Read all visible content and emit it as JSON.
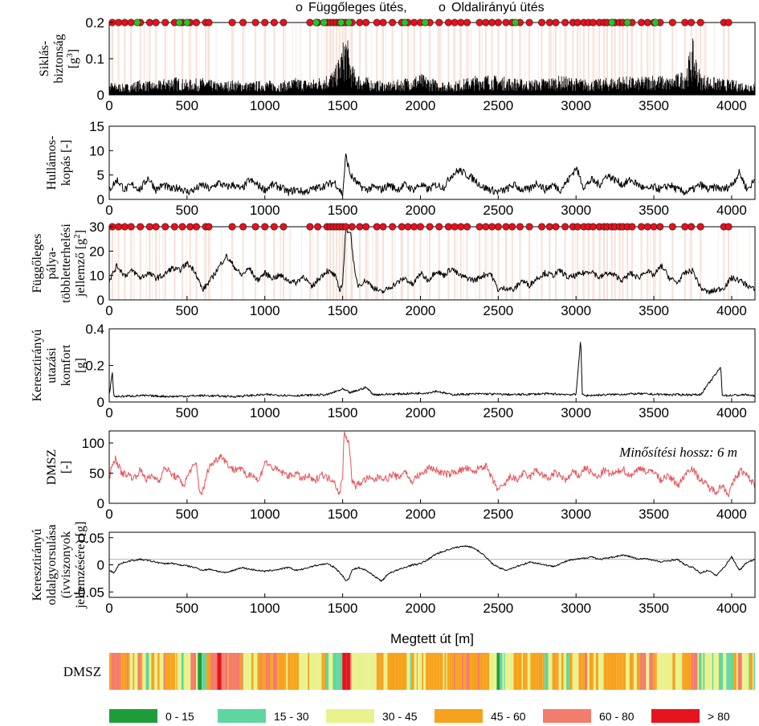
{
  "chart_data": {
    "type": "line",
    "legend": {
      "marker_vertical_symbol": "o",
      "marker_vertical_label": "Függőleges ütés,",
      "marker_lateral_symbol": "o",
      "marker_lateral_label": "Oldalirányú ütés",
      "marker_vertical_color": "#e8101c",
      "marker_lateral_color": "#2bc424"
    },
    "xlabel": "Megtett út [m]",
    "xlim": [
      0,
      4150
    ],
    "xticks": [
      0,
      500,
      1000,
      1500,
      2000,
      2500,
      3000,
      3500,
      4000
    ],
    "vertical_impacts": [
      20,
      60,
      100,
      140,
      200,
      260,
      300,
      360,
      420,
      470,
      520,
      560,
      620,
      640,
      790,
      860,
      940,
      1000,
      1060,
      1120,
      1290,
      1340,
      1400,
      1420,
      1440,
      1460,
      1480,
      1500,
      1520,
      1560,
      1610,
      1650,
      1720,
      1760,
      1820,
      1880,
      1920,
      1960,
      2000,
      2060,
      2120,
      2180,
      2220,
      2260,
      2300,
      2380,
      2420,
      2460,
      2500,
      2550,
      2590,
      2640,
      2700,
      2780,
      2830,
      2870,
      2930,
      2980,
      3010,
      3050,
      3080,
      3110,
      3150,
      3180,
      3200,
      3230,
      3250,
      3280,
      3300,
      3330,
      3360,
      3420,
      3460,
      3500,
      3540,
      3620,
      3700,
      3740,
      3800,
      3950,
      3980
    ],
    "lateral_impacts": [
      180,
      450,
      500,
      1330,
      1380,
      1490,
      1540,
      1900,
      2030,
      2610,
      3230,
      3330,
      3510
    ],
    "panels": [
      {
        "id": "slip",
        "ylabel_lines": [
          "Siklás-",
          "biztonság"
        ],
        "ylabel_unit": "[g",
        "ylabel_unit_sup": "3",
        "ylabel_unit_end": "]",
        "ylim": [
          0,
          0.2
        ],
        "yticks": [
          "0",
          "0.1",
          "0.2"
        ],
        "ytick_values": [
          0,
          0.1,
          0.2
        ],
        "color": "#000000",
        "style": "spikes",
        "markers": "both",
        "x": [
          0,
          100,
          200,
          300,
          400,
          500,
          600,
          700,
          800,
          900,
          1000,
          1100,
          1200,
          1300,
          1400,
          1450,
          1500,
          1520,
          1560,
          1600,
          1700,
          1800,
          1900,
          2000,
          2100,
          2200,
          2300,
          2400,
          2500,
          2600,
          2700,
          2800,
          2900,
          3000,
          3100,
          3200,
          3300,
          3400,
          3500,
          3600,
          3700,
          3750,
          3800,
          3900,
          4000,
          4100,
          4150
        ],
        "y": [
          0.03,
          0.025,
          0.035,
          0.03,
          0.045,
          0.035,
          0.04,
          0.03,
          0.035,
          0.03,
          0.035,
          0.03,
          0.04,
          0.035,
          0.05,
          0.06,
          0.12,
          0.155,
          0.07,
          0.05,
          0.035,
          0.03,
          0.04,
          0.05,
          0.035,
          0.03,
          0.04,
          0.05,
          0.045,
          0.04,
          0.035,
          0.04,
          0.045,
          0.04,
          0.035,
          0.04,
          0.045,
          0.04,
          0.05,
          0.04,
          0.06,
          0.13,
          0.05,
          0.04,
          0.035,
          0.03,
          0.03
        ]
      },
      {
        "id": "corrugation",
        "ylabel_lines": [
          "Hullámos-",
          "kopás [-]"
        ],
        "ylim": [
          0,
          15
        ],
        "yticks": [
          "0",
          "5",
          "10",
          "15"
        ],
        "ytick_values": [
          0,
          5,
          10,
          15
        ],
        "color": "#000000",
        "style": "line",
        "markers": "none",
        "x": [
          0,
          50,
          100,
          150,
          200,
          250,
          300,
          350,
          400,
          450,
          500,
          550,
          600,
          650,
          700,
          750,
          800,
          850,
          900,
          950,
          1000,
          1050,
          1100,
          1150,
          1200,
          1250,
          1300,
          1350,
          1400,
          1450,
          1500,
          1520,
          1550,
          1600,
          1650,
          1700,
          1750,
          1800,
          1850,
          1900,
          1950,
          2000,
          2050,
          2100,
          2150,
          2200,
          2250,
          2300,
          2350,
          2400,
          2450,
          2500,
          2550,
          2600,
          2650,
          2700,
          2750,
          2800,
          2850,
          2900,
          2950,
          3000,
          3050,
          3100,
          3150,
          3200,
          3250,
          3300,
          3350,
          3400,
          3450,
          3500,
          3550,
          3600,
          3650,
          3700,
          3750,
          3800,
          3850,
          3900,
          3950,
          4000,
          4050,
          4100,
          4150
        ],
        "y": [
          2,
          4,
          2,
          3,
          2,
          4.5,
          2,
          3,
          2,
          2.5,
          1.5,
          2,
          3,
          2,
          3.5,
          2.5,
          3,
          2,
          4,
          3,
          2,
          3,
          2.5,
          1.5,
          2,
          1.5,
          2,
          2.5,
          3,
          3.5,
          1,
          9,
          5,
          3,
          2,
          2.5,
          2,
          3,
          2,
          3,
          2,
          3,
          2,
          3,
          2.5,
          5,
          6,
          5,
          4,
          2.5,
          2,
          1.5,
          2,
          3,
          2,
          2,
          3.5,
          2,
          3,
          2,
          4,
          6.5,
          2.5,
          4,
          3,
          5,
          4,
          3,
          4,
          3,
          2,
          2.5,
          2,
          3,
          2,
          1.5,
          2,
          3,
          2,
          2.5,
          2,
          3,
          5.5,
          2,
          4
        ]
      },
      {
        "id": "track-overload",
        "ylabel_lines": [
          "Függőleges",
          "pálya-",
          "többletterhelési",
          "jellemző [g"
        ],
        "ylabel_unit_sup": "2",
        "ylabel_unit_end": "]",
        "ylim": [
          0,
          30
        ],
        "yticks": [
          "0",
          "10",
          "20",
          "30"
        ],
        "ytick_values": [
          0,
          10,
          20,
          30
        ],
        "color": "#000000",
        "style": "line",
        "markers": "vertical",
        "x": [
          0,
          50,
          100,
          150,
          200,
          250,
          300,
          350,
          400,
          450,
          500,
          550,
          600,
          650,
          700,
          750,
          800,
          850,
          900,
          950,
          1000,
          1050,
          1100,
          1150,
          1200,
          1250,
          1300,
          1350,
          1400,
          1450,
          1480,
          1500,
          1520,
          1550,
          1580,
          1600,
          1650,
          1700,
          1750,
          1800,
          1850,
          1900,
          1950,
          2000,
          2050,
          2100,
          2150,
          2200,
          2250,
          2300,
          2350,
          2400,
          2450,
          2500,
          2550,
          2600,
          2650,
          2700,
          2750,
          2800,
          2850,
          2900,
          2950,
          3000,
          3050,
          3100,
          3150,
          3200,
          3250,
          3300,
          3350,
          3400,
          3450,
          3500,
          3550,
          3600,
          3650,
          3700,
          3750,
          3800,
          3850,
          3900,
          3950,
          4000,
          4050,
          4100,
          4150
        ],
        "y": [
          8,
          14,
          10,
          12,
          9,
          11,
          9,
          10,
          13,
          12,
          15,
          12,
          4,
          8,
          13,
          18,
          14,
          10,
          13,
          8,
          11,
          9,
          10,
          8,
          7,
          10,
          5,
          9,
          12,
          10,
          4,
          7,
          29,
          28,
          10,
          6,
          8,
          5,
          3,
          5,
          7,
          9,
          6,
          11,
          8,
          12,
          10,
          13,
          10,
          9,
          8,
          10,
          11,
          4,
          5,
          4,
          8,
          6,
          9,
          11,
          10,
          12,
          9,
          10,
          11,
          12,
          9,
          11,
          10,
          8,
          11,
          9,
          12,
          10,
          14,
          9,
          7,
          11,
          12,
          5,
          3,
          4,
          5,
          9,
          8,
          6,
          4
        ]
      },
      {
        "id": "lateral-comfort",
        "ylabel_lines": [
          "Keresztirányú",
          "utazási",
          "komfort",
          "[g]"
        ],
        "ylim": [
          0,
          0.4
        ],
        "yticks": [
          "0",
          "0.2",
          "0.4"
        ],
        "ytick_values": [
          0,
          0.2,
          0.4
        ],
        "color": "#000000",
        "style": "line",
        "markers": "none",
        "x": [
          0,
          20,
          30,
          50,
          200,
          400,
          600,
          800,
          1000,
          1200,
          1400,
          1500,
          1550,
          1650,
          1700,
          1900,
          2050,
          2100,
          2200,
          2400,
          2600,
          2800,
          3000,
          3030,
          3040,
          3060,
          3200,
          3400,
          3600,
          3800,
          3930,
          3940,
          3960,
          4100,
          4150
        ],
        "y": [
          0.04,
          0.16,
          0.03,
          0.03,
          0.035,
          0.03,
          0.035,
          0.03,
          0.04,
          0.035,
          0.04,
          0.07,
          0.05,
          0.08,
          0.04,
          0.045,
          0.05,
          0.06,
          0.04,
          0.045,
          0.04,
          0.045,
          0.04,
          0.35,
          0.04,
          0.035,
          0.04,
          0.045,
          0.04,
          0.04,
          0.19,
          0.04,
          0.035,
          0.04,
          0.03
        ]
      },
      {
        "id": "dmsz",
        "ylabel_lines": [
          "DMSZ",
          "[-]"
        ],
        "ylim": [
          0,
          120
        ],
        "yticks": [
          "0",
          "50",
          "100"
        ],
        "ytick_values": [
          0,
          50,
          100
        ],
        "color": "#e8525a",
        "style": "line",
        "markers": "none",
        "annotation": "Minősítési hossz: 6 m",
        "x": [
          0,
          40,
          80,
          120,
          160,
          200,
          240,
          280,
          320,
          360,
          400,
          440,
          480,
          520,
          560,
          580,
          600,
          640,
          680,
          720,
          760,
          800,
          840,
          880,
          920,
          960,
          1000,
          1040,
          1080,
          1120,
          1160,
          1200,
          1240,
          1280,
          1320,
          1360,
          1400,
          1440,
          1480,
          1500,
          1510,
          1540,
          1560,
          1580,
          1620,
          1660,
          1700,
          1740,
          1780,
          1820,
          1860,
          1900,
          1940,
          1980,
          2020,
          2060,
          2100,
          2140,
          2180,
          2220,
          2260,
          2300,
          2340,
          2380,
          2420,
          2460,
          2500,
          2540,
          2580,
          2620,
          2660,
          2700,
          2740,
          2780,
          2820,
          2860,
          2900,
          2940,
          2980,
          3020,
          3060,
          3100,
          3140,
          3180,
          3220,
          3260,
          3300,
          3340,
          3380,
          3420,
          3460,
          3500,
          3540,
          3580,
          3620,
          3660,
          3700,
          3740,
          3780,
          3820,
          3860,
          3900,
          3940,
          3980,
          4020,
          4060,
          4100,
          4150
        ],
        "y": [
          45,
          75,
          50,
          48,
          42,
          55,
          40,
          45,
          38,
          60,
          48,
          42,
          30,
          55,
          65,
          20,
          18,
          60,
          70,
          80,
          65,
          55,
          60,
          45,
          50,
          35,
          70,
          60,
          55,
          50,
          45,
          50,
          40,
          45,
          35,
          50,
          42,
          40,
          15,
          45,
          120,
          100,
          40,
          28,
          35,
          42,
          38,
          45,
          40,
          48,
          42,
          55,
          35,
          45,
          50,
          60,
          55,
          50,
          48,
          52,
          55,
          58,
          50,
          60,
          62,
          40,
          22,
          30,
          45,
          38,
          50,
          42,
          55,
          48,
          40,
          50,
          45,
          38,
          52,
          45,
          60,
          50,
          42,
          55,
          48,
          50,
          58,
          45,
          52,
          60,
          50,
          55,
          38,
          45,
          40,
          30,
          48,
          60,
          45,
          35,
          25,
          20,
          30,
          15,
          40,
          55,
          45,
          30
        ],
        "hline": null
      },
      {
        "id": "lateral-accel",
        "ylabel_lines": [
          "Keresztirányú",
          "oldalgyorsulása",
          "(ívviszonyok",
          "jellemzésére) [g]"
        ],
        "ylim": [
          -0.06,
          0.06
        ],
        "yticks": [
          "-0.05",
          "0",
          "0.05"
        ],
        "ytick_values": [
          -0.05,
          0,
          0.05
        ],
        "color": "#000000",
        "style": "line",
        "markers": "none",
        "hline": 0.01,
        "x": [
          0,
          30,
          60,
          100,
          150,
          200,
          250,
          300,
          350,
          400,
          450,
          500,
          550,
          600,
          650,
          700,
          750,
          800,
          850,
          900,
          950,
          1000,
          1050,
          1100,
          1150,
          1200,
          1250,
          1300,
          1350,
          1400,
          1450,
          1500,
          1520,
          1540,
          1560,
          1600,
          1650,
          1700,
          1750,
          1800,
          1850,
          1900,
          1950,
          2000,
          2050,
          2100,
          2150,
          2200,
          2250,
          2300,
          2350,
          2400,
          2450,
          2500,
          2550,
          2600,
          2650,
          2700,
          2750,
          2800,
          2850,
          2900,
          2950,
          3000,
          3050,
          3100,
          3150,
          3200,
          3250,
          3300,
          3350,
          3400,
          3450,
          3500,
          3550,
          3600,
          3650,
          3700,
          3750,
          3800,
          3850,
          3900,
          3950,
          4000,
          4050,
          4100,
          4150
        ],
        "y": [
          -0.01,
          -0.015,
          0,
          0.005,
          0.008,
          0.01,
          0.008,
          0.005,
          0.002,
          0.003,
          0,
          -0.002,
          -0.005,
          -0.01,
          -0.008,
          -0.012,
          -0.015,
          -0.01,
          -0.005,
          -0.008,
          -0.01,
          -0.012,
          -0.01,
          -0.008,
          -0.005,
          -0.01,
          -0.008,
          -0.003,
          0,
          0.002,
          -0.005,
          -0.02,
          -0.03,
          -0.025,
          -0.01,
          -0.005,
          -0.01,
          -0.02,
          -0.03,
          -0.015,
          -0.01,
          -0.005,
          0,
          0.002,
          0.01,
          0.02,
          0.025,
          0.03,
          0.033,
          0.035,
          0.03,
          0.02,
          0.005,
          -0.005,
          -0.01,
          -0.005,
          0,
          0.005,
          0.003,
          0,
          -0.003,
          0.002,
          0.008,
          0.01,
          0.012,
          0.015,
          0.01,
          0.012,
          0.015,
          0.018,
          0.015,
          0.01,
          0.012,
          0.008,
          0.005,
          0.008,
          0.01,
          0,
          -0.005,
          -0.015,
          -0.01,
          -0.02,
          -0.005,
          0.015,
          -0.01,
          0.005,
          0.01
        ]
      }
    ],
    "strip": {
      "label": "DMSZ",
      "bins": [
        {
          "label": "0 - 15",
          "color": "#1f9c3a"
        },
        {
          "label": "15 - 30",
          "color": "#5fd6a0"
        },
        {
          "label": "30 - 45",
          "color": "#e9f28c"
        },
        {
          "label": "45 - 60",
          "color": "#f7a21c"
        },
        {
          "label": "60 - 80",
          "color": "#f47c6c"
        },
        {
          "label": "> 80",
          "color": "#e6141c"
        }
      ]
    }
  }
}
